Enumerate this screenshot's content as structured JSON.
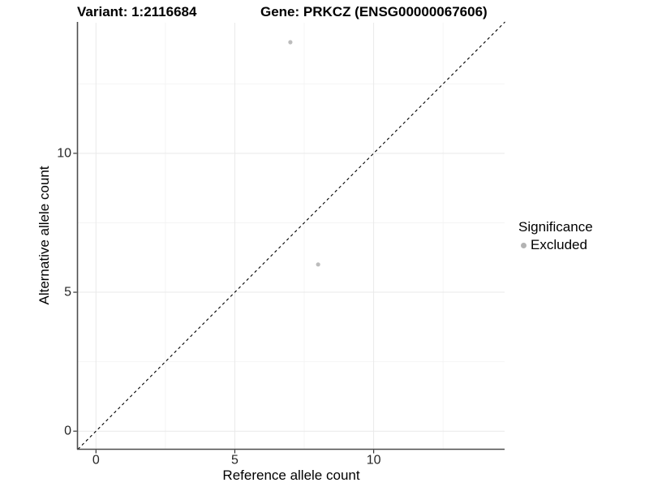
{
  "header": {
    "variant_title": "Variant: 1:2116684",
    "gene_title": "Gene: PRKCZ (ENSG00000067606)"
  },
  "axes": {
    "x_label": "Reference allele count",
    "y_label": "Alternative allele count"
  },
  "legend": {
    "title": "Significance",
    "items": [
      {
        "label": "Excluded",
        "color": "#b3b3b3"
      }
    ]
  },
  "chart_data": {
    "type": "scatter",
    "title": "Variant: 1:2116684 | Gene: PRKCZ (ENSG00000067606)",
    "xlabel": "Reference allele count",
    "ylabel": "Alternative allele count",
    "xlim": [
      -0.65,
      14.73
    ],
    "ylim": [
      -0.65,
      14.71
    ],
    "x_tick_values": [
      0,
      5,
      10
    ],
    "y_tick_values": [
      0,
      5,
      10
    ],
    "minor_grid_values": [
      2.5,
      7.5,
      12.5
    ],
    "grid": true,
    "legend_position": "right",
    "series": [
      {
        "name": "Excluded",
        "color": "#bcbcbc",
        "points": [
          [
            7,
            14
          ],
          [
            8,
            6
          ]
        ]
      }
    ],
    "identity_line": {
      "equation": "y = x",
      "style": "dashed",
      "color": "#000000",
      "from": [
        -0.65,
        -0.65
      ],
      "to": [
        14.73,
        14.73
      ]
    }
  },
  "colors": {
    "background": "#ffffff",
    "grid_major": "#e9e9e9",
    "grid_minor": "#f4f4f4",
    "axis_line": "#4d4d4d",
    "tick_text": "#262626",
    "point": "#bcbcbc"
  }
}
